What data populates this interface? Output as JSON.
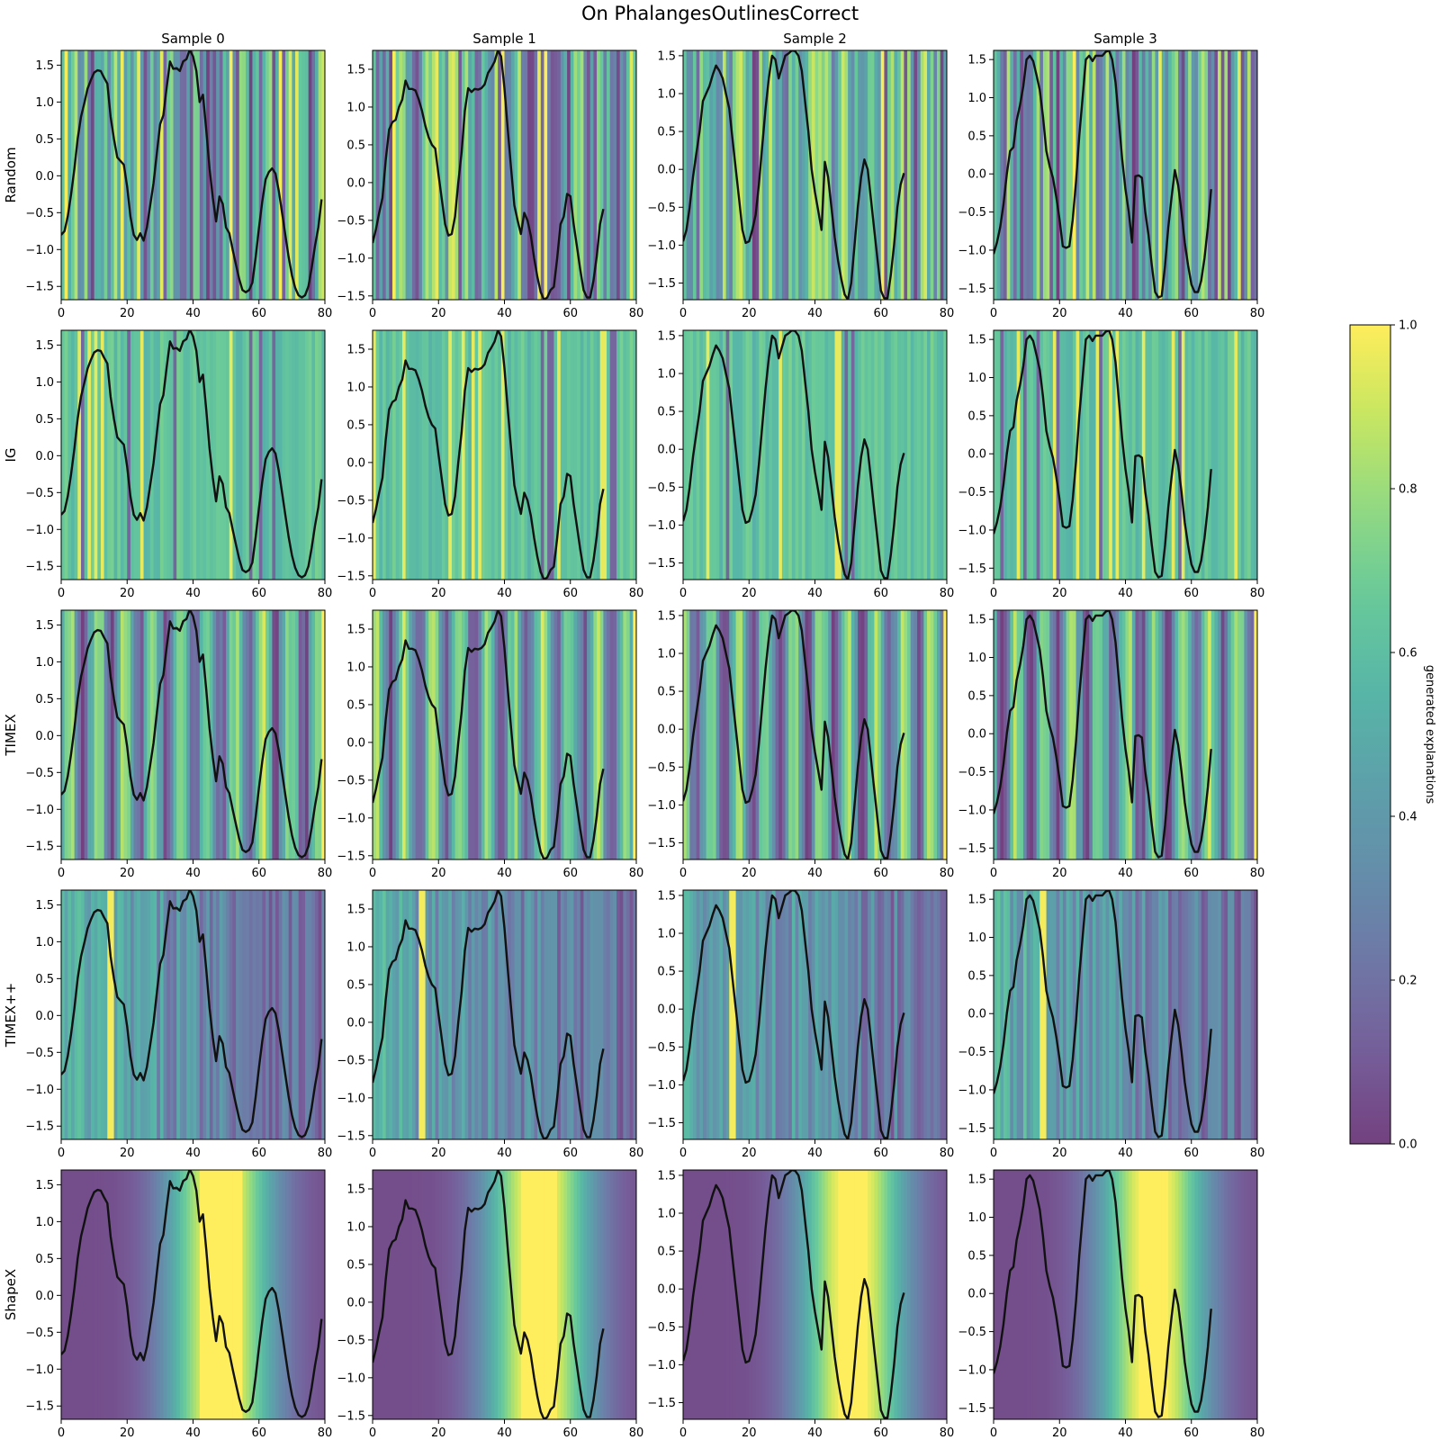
{
  "title": "On PhalangesOutlinesCorrect",
  "colorbar": {
    "label": "generated explanations",
    "ticks": [
      "0.0",
      "0.2",
      "0.4",
      "0.6",
      "0.8",
      "1.0"
    ],
    "colormap": "viridis",
    "alpha": 0.75
  },
  "chart_data": {
    "type": "heatmap",
    "subtype": "time-series saliency heatmap with overlaid line",
    "columns": [
      "Sample 0",
      "Sample 1",
      "Sample 2",
      "Sample 3"
    ],
    "rows": [
      "Random",
      "IG",
      "TIMEX",
      "TIMEX++",
      "ShapeX"
    ],
    "xlim": [
      0,
      80
    ],
    "x_ticks": [
      0,
      20,
      40,
      60,
      80
    ],
    "samples": [
      {
        "name": "Sample 0",
        "ylim": [
          -1.68,
          1.7
        ],
        "y_ticks": [
          "-1.5",
          "-1.0",
          "-0.5",
          "0.0",
          "0.5",
          "1.0",
          "1.5"
        ],
        "series": [
          [
            0,
            -0.8
          ],
          [
            1,
            -0.75
          ],
          [
            2,
            -0.55
          ],
          [
            3,
            -0.25
          ],
          [
            4,
            0.1
          ],
          [
            5,
            0.5
          ],
          [
            6,
            0.8
          ],
          [
            7,
            0.98
          ],
          [
            8,
            1.18
          ],
          [
            9,
            1.3
          ],
          [
            10,
            1.4
          ],
          [
            11,
            1.43
          ],
          [
            12,
            1.42
          ],
          [
            13,
            1.33
          ],
          [
            14,
            1.25
          ],
          [
            15,
            0.8
          ],
          [
            16,
            0.5
          ],
          [
            17,
            0.25
          ],
          [
            18,
            0.2
          ],
          [
            19,
            0.15
          ],
          [
            20,
            -0.15
          ],
          [
            21,
            -0.55
          ],
          [
            22,
            -0.8
          ],
          [
            23,
            -0.87
          ],
          [
            24,
            -0.78
          ],
          [
            25,
            -0.88
          ],
          [
            26,
            -0.7
          ],
          [
            27,
            -0.4
          ],
          [
            28,
            -0.1
          ],
          [
            29,
            0.3
          ],
          [
            30,
            0.7
          ],
          [
            31,
            0.82
          ],
          [
            32,
            1.2
          ],
          [
            33,
            1.55
          ],
          [
            34,
            1.45
          ],
          [
            35,
            1.46
          ],
          [
            36,
            1.42
          ],
          [
            37,
            1.55
          ],
          [
            38,
            1.58
          ],
          [
            39,
            1.71
          ],
          [
            40,
            1.62
          ],
          [
            41,
            1.42
          ],
          [
            42,
            1.0
          ],
          [
            43,
            1.1
          ],
          [
            44,
            0.62
          ],
          [
            45,
            0.1
          ],
          [
            46,
            -0.3
          ],
          [
            47,
            -0.62
          ],
          [
            48,
            -0.28
          ],
          [
            49,
            -0.38
          ],
          [
            50,
            -0.7
          ],
          [
            51,
            -0.78
          ],
          [
            52,
            -1.0
          ],
          [
            53,
            -1.2
          ],
          [
            54,
            -1.4
          ],
          [
            55,
            -1.55
          ],
          [
            56,
            -1.58
          ],
          [
            57,
            -1.55
          ],
          [
            58,
            -1.45
          ],
          [
            59,
            -1.1
          ],
          [
            60,
            -0.7
          ],
          [
            61,
            -0.35
          ],
          [
            62,
            -0.05
          ],
          [
            63,
            0.05
          ],
          [
            64,
            0.1
          ],
          [
            65,
            0.03
          ],
          [
            66,
            -0.2
          ],
          [
            67,
            -0.5
          ],
          [
            68,
            -0.8
          ],
          [
            69,
            -1.1
          ],
          [
            70,
            -1.35
          ],
          [
            71,
            -1.52
          ],
          [
            72,
            -1.62
          ],
          [
            73,
            -1.65
          ],
          [
            74,
            -1.62
          ],
          [
            75,
            -1.5
          ],
          [
            76,
            -1.25
          ],
          [
            77,
            -0.95
          ],
          [
            78,
            -0.7
          ],
          [
            79,
            -0.32
          ]
        ]
      },
      {
        "name": "Sample 1",
        "ylim": [
          -1.55,
          1.75
        ],
        "y_ticks": [
          "-1.5",
          "-1.0",
          "-0.5",
          "0.0",
          "0.5",
          "1.0",
          "1.5"
        ],
        "series": [
          [
            0,
            -0.8
          ],
          [
            1,
            -0.62
          ],
          [
            2,
            -0.4
          ],
          [
            3,
            -0.2
          ],
          [
            4,
            0.3
          ],
          [
            5,
            0.7
          ],
          [
            6,
            0.8
          ],
          [
            7,
            0.83
          ],
          [
            8,
            1.0
          ],
          [
            9,
            1.1
          ],
          [
            10,
            1.35
          ],
          [
            11,
            1.24
          ],
          [
            12,
            1.24
          ],
          [
            13,
            1.22
          ],
          [
            14,
            1.1
          ],
          [
            15,
            0.95
          ],
          [
            16,
            0.75
          ],
          [
            17,
            0.6
          ],
          [
            18,
            0.5
          ],
          [
            19,
            0.45
          ],
          [
            20,
            0.1
          ],
          [
            21,
            -0.22
          ],
          [
            22,
            -0.55
          ],
          [
            23,
            -0.7
          ],
          [
            24,
            -0.68
          ],
          [
            25,
            -0.45
          ],
          [
            26,
            0.0
          ],
          [
            27,
            0.4
          ],
          [
            28,
            0.95
          ],
          [
            29,
            1.25
          ],
          [
            30,
            1.2
          ],
          [
            31,
            1.24
          ],
          [
            32,
            1.23
          ],
          [
            33,
            1.25
          ],
          [
            34,
            1.3
          ],
          [
            35,
            1.45
          ],
          [
            36,
            1.52
          ],
          [
            37,
            1.6
          ],
          [
            38,
            1.75
          ],
          [
            39,
            1.67
          ],
          [
            40,
            1.25
          ],
          [
            41,
            0.7
          ],
          [
            42,
            0.2
          ],
          [
            43,
            -0.3
          ],
          [
            44,
            -0.5
          ],
          [
            45,
            -0.68
          ],
          [
            46,
            -0.4
          ],
          [
            47,
            -0.5
          ],
          [
            48,
            -0.7
          ],
          [
            49,
            -1.0
          ],
          [
            50,
            -1.25
          ],
          [
            51,
            -1.45
          ],
          [
            52,
            -1.55
          ],
          [
            53,
            -1.52
          ],
          [
            54,
            -1.42
          ],
          [
            55,
            -1.38
          ],
          [
            56,
            -1.0
          ],
          [
            57,
            -0.55
          ],
          [
            58,
            -0.45
          ],
          [
            59,
            -0.15
          ],
          [
            60,
            -0.18
          ],
          [
            61,
            -0.55
          ],
          [
            62,
            -0.85
          ],
          [
            63,
            -1.15
          ],
          [
            64,
            -1.42
          ],
          [
            65,
            -1.52
          ],
          [
            66,
            -1.52
          ],
          [
            67,
            -1.3
          ],
          [
            68,
            -0.98
          ],
          [
            69,
            -0.55
          ],
          [
            70,
            -0.35
          ]
        ]
      },
      {
        "name": "Sample 2",
        "ylim": [
          -1.72,
          1.57
        ],
        "y_ticks": [
          "-1.5",
          "-1.0",
          "-0.5",
          "0.0",
          "0.5",
          "1.0",
          "1.5"
        ],
        "series": [
          [
            0,
            -0.95
          ],
          [
            1,
            -0.8
          ],
          [
            2,
            -0.5
          ],
          [
            3,
            -0.1
          ],
          [
            4,
            0.2
          ],
          [
            5,
            0.5
          ],
          [
            6,
            0.9
          ],
          [
            7,
            1.0
          ],
          [
            8,
            1.1
          ],
          [
            9,
            1.25
          ],
          [
            10,
            1.37
          ],
          [
            11,
            1.3
          ],
          [
            12,
            1.2
          ],
          [
            13,
            1.0
          ],
          [
            14,
            0.8
          ],
          [
            15,
            0.4
          ],
          [
            16,
            0.0
          ],
          [
            17,
            -0.4
          ],
          [
            18,
            -0.8
          ],
          [
            19,
            -0.97
          ],
          [
            20,
            -0.95
          ],
          [
            21,
            -0.8
          ],
          [
            22,
            -0.6
          ],
          [
            23,
            -0.2
          ],
          [
            24,
            0.3
          ],
          [
            25,
            0.8
          ],
          [
            26,
            1.2
          ],
          [
            27,
            1.5
          ],
          [
            28,
            1.45
          ],
          [
            29,
            1.2
          ],
          [
            30,
            1.35
          ],
          [
            31,
            1.5
          ],
          [
            32,
            1.53
          ],
          [
            33,
            1.57
          ],
          [
            34,
            1.56
          ],
          [
            35,
            1.5
          ],
          [
            36,
            1.3
          ],
          [
            37,
            0.9
          ],
          [
            38,
            0.5
          ],
          [
            39,
            0.0
          ],
          [
            40,
            -0.3
          ],
          [
            41,
            -0.55
          ],
          [
            42,
            -0.8
          ],
          [
            43,
            0.1
          ],
          [
            44,
            -0.1
          ],
          [
            45,
            -0.5
          ],
          [
            46,
            -0.9
          ],
          [
            47,
            -1.2
          ],
          [
            48,
            -1.45
          ],
          [
            49,
            -1.65
          ],
          [
            50,
            -1.72
          ],
          [
            51,
            -1.5
          ],
          [
            52,
            -1.0
          ],
          [
            53,
            -0.5
          ],
          [
            54,
            -0.1
          ],
          [
            55,
            0.13
          ],
          [
            56,
            0.0
          ],
          [
            57,
            -0.4
          ],
          [
            58,
            -0.8
          ],
          [
            59,
            -1.2
          ],
          [
            60,
            -1.6
          ],
          [
            61,
            -1.7
          ],
          [
            62,
            -1.7
          ],
          [
            63,
            -1.4
          ],
          [
            64,
            -1.0
          ],
          [
            65,
            -0.5
          ],
          [
            66,
            -0.2
          ],
          [
            67,
            -0.05
          ]
        ]
      },
      {
        "name": "Sample 3",
        "ylim": [
          -1.65,
          1.62
        ],
        "y_ticks": [
          "-1.5",
          "-1.0",
          "-0.5",
          "0.0",
          "0.5",
          "1.0",
          "1.5"
        ],
        "series": [
          [
            0,
            -1.05
          ],
          [
            1,
            -0.9
          ],
          [
            2,
            -0.7
          ],
          [
            3,
            -0.4
          ],
          [
            4,
            0.0
          ],
          [
            5,
            0.3
          ],
          [
            6,
            0.35
          ],
          [
            7,
            0.7
          ],
          [
            8,
            0.9
          ],
          [
            9,
            1.15
          ],
          [
            10,
            1.5
          ],
          [
            11,
            1.55
          ],
          [
            12,
            1.48
          ],
          [
            13,
            1.3
          ],
          [
            14,
            1.1
          ],
          [
            15,
            0.75
          ],
          [
            16,
            0.3
          ],
          [
            17,
            0.1
          ],
          [
            18,
            -0.05
          ],
          [
            19,
            -0.3
          ],
          [
            20,
            -0.6
          ],
          [
            21,
            -0.95
          ],
          [
            22,
            -0.97
          ],
          [
            23,
            -0.95
          ],
          [
            24,
            -0.6
          ],
          [
            25,
            -0.1
          ],
          [
            26,
            0.5
          ],
          [
            27,
            1.0
          ],
          [
            28,
            1.5
          ],
          [
            29,
            1.55
          ],
          [
            30,
            1.48
          ],
          [
            31,
            1.55
          ],
          [
            32,
            1.55
          ],
          [
            33,
            1.55
          ],
          [
            34,
            1.6
          ],
          [
            35,
            1.62
          ],
          [
            36,
            1.5
          ],
          [
            37,
            1.2
          ],
          [
            38,
            0.7
          ],
          [
            39,
            0.2
          ],
          [
            40,
            -0.2
          ],
          [
            41,
            -0.5
          ],
          [
            42,
            -0.9
          ],
          [
            43,
            -0.03
          ],
          [
            44,
            -0.02
          ],
          [
            45,
            -0.05
          ],
          [
            46,
            -0.5
          ],
          [
            47,
            -0.8
          ],
          [
            48,
            -1.2
          ],
          [
            49,
            -1.55
          ],
          [
            50,
            -1.62
          ],
          [
            51,
            -1.6
          ],
          [
            52,
            -1.2
          ],
          [
            53,
            -0.7
          ],
          [
            54,
            -0.3
          ],
          [
            55,
            0.05
          ],
          [
            56,
            -0.15
          ],
          [
            57,
            -0.5
          ],
          [
            58,
            -0.9
          ],
          [
            59,
            -1.2
          ],
          [
            60,
            -1.45
          ],
          [
            61,
            -1.55
          ],
          [
            62,
            -1.55
          ],
          [
            63,
            -1.4
          ],
          [
            64,
            -1.1
          ],
          [
            65,
            -0.7
          ],
          [
            66,
            -0.2
          ]
        ]
      }
    ],
    "cells": [
      [
        "random-0",
        "random-1",
        "random-2",
        "random-3"
      ],
      [
        "ig-0",
        "ig-1",
        "ig-2",
        "ig-3"
      ],
      [
        "timex-0",
        "timex-1",
        "timex-2",
        "timex-3"
      ],
      [
        "timexpp-0",
        "timexpp-1",
        "timexpp-2",
        "timexpp-3"
      ],
      [
        "shapex-0",
        "shapex-1",
        "shapex-2",
        "shapex-3"
      ]
    ],
    "heat_patterns": {
      "Random": "high-frequency noise across all 80 steps, values spanning 0.0-1.0",
      "IG": "mostly mid values (~0.6-0.75) with sparse yellow and purple stripes",
      "TIMEX": "banded alternating purple and light green stripes, bright yellow at final step",
      "TIMEX++": "mostly teal with few yellow stripes near step 14-15, purple toward end",
      "ShapeX": "smooth bump: purple at start, teal, peak yellow around step 48-55, purple at end"
    },
    "smooth_peaks": [
      [
        48,
        7
      ],
      [
        50,
        6
      ],
      [
        51,
        5
      ],
      [
        48,
        5
      ]
    ],
    "colorbar_range": [
      0,
      1
    ]
  }
}
